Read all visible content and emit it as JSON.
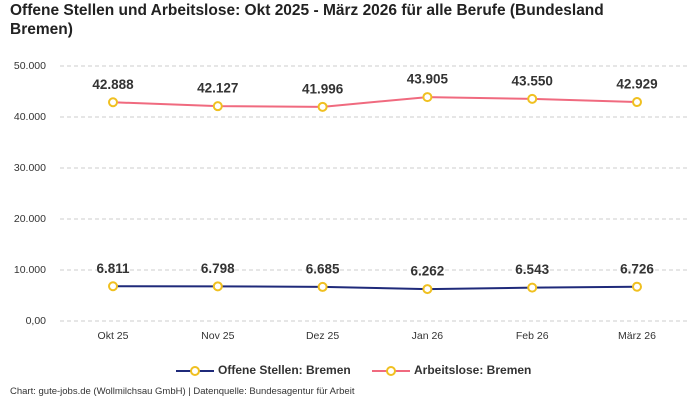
{
  "chart_data": {
    "type": "line",
    "title": "Offene Stellen und Arbeitslose: Okt 2025 - März 2026 für alle Berufe (Bundesland Bremen)",
    "source": "Chart: gute-jobs.de (Wollmilchsau GmbH) | Datenquelle: Bundesagentur für Arbeit",
    "categories": [
      "Okt 25",
      "Nov 25",
      "Dez 25",
      "Jan 26",
      "Feb 26",
      "März 26"
    ],
    "series": [
      {
        "name": "Offene Stellen: Bremen",
        "color": "#1f2a7a",
        "values": [
          6811,
          6798,
          6685,
          6262,
          6543,
          6726
        ],
        "value_labels": [
          "6.811",
          "6.798",
          "6.685",
          "6.262",
          "6.543",
          "6.726"
        ]
      },
      {
        "name": "Arbeitslose: Bremen",
        "color": "#f06a7f",
        "values": [
          42888,
          42127,
          41996,
          43905,
          43550,
          42929
        ],
        "value_labels": [
          "42.888",
          "42.127",
          "41.996",
          "43.905",
          "43.550",
          "42.929"
        ]
      }
    ],
    "marker_color": "#f0c020",
    "ylim": [
      0,
      50000
    ],
    "yticks": [
      {
        "value": 0,
        "label": "0,00"
      },
      {
        "value": 10000,
        "label": "10.000"
      },
      {
        "value": 20000,
        "label": "20.000"
      },
      {
        "value": 30000,
        "label": "30.000"
      },
      {
        "value": 40000,
        "label": "40.000"
      },
      {
        "value": 50000,
        "label": "50.000"
      }
    ],
    "grid": true
  }
}
